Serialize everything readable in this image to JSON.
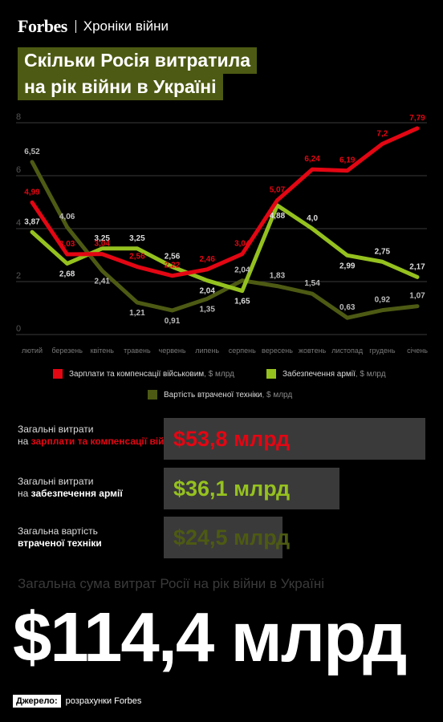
{
  "header": {
    "brand": "Forbes",
    "section": "Хроніки війни"
  },
  "title_lines": [
    "Скільки Росія витратила",
    "на рік війни в Україні"
  ],
  "colors": {
    "salary": "#e30613",
    "supply": "#95c11f",
    "equipment": "#4d5a13"
  },
  "chart_data": {
    "type": "line",
    "categories": [
      "лютий",
      "березень",
      "квітень",
      "травень",
      "червень",
      "липень",
      "серпень",
      "вересень",
      "жовтень",
      "листопад",
      "грудень",
      "січень"
    ],
    "y_ticks": [
      "8",
      "6",
      "4",
      "2",
      "0"
    ],
    "ylim": [
      0,
      8
    ],
    "grid": true,
    "series": [
      {
        "key": "salary",
        "name": "Зарплати та компенсації військовим",
        "unit": ", $ млрд",
        "color": "#e30613",
        "values": [
          4.99,
          3.03,
          3.04,
          2.56,
          2.22,
          2.46,
          3.04,
          5.07,
          6.24,
          6.19,
          7.2,
          7.79
        ],
        "labels": [
          "4,99",
          "3,03",
          "3,04",
          "2,56",
          "2,22",
          "2,46",
          "3,04",
          "5,07",
          "6,24",
          "6,19",
          "7,2",
          "7,79"
        ]
      },
      {
        "key": "supply",
        "name": "Забезпечення армії",
        "unit": ", $ млрд",
        "color": "#95c11f",
        "values": [
          3.87,
          2.68,
          3.25,
          3.25,
          2.56,
          2.04,
          1.65,
          4.88,
          4.0,
          2.99,
          2.75,
          2.17
        ],
        "labels": [
          "3,87",
          "2,68",
          "3,25",
          "3,25",
          "2,56",
          "2,04",
          "1,65",
          "4,88",
          "4,0",
          "2,99",
          "2,75",
          "2,17"
        ]
      },
      {
        "key": "equipment",
        "name": "Вартість втраченої техніки",
        "unit": ", $ млрд",
        "color": "#4d5a13",
        "values": [
          6.52,
          4.06,
          2.41,
          1.21,
          0.91,
          1.35,
          2.04,
          1.83,
          1.54,
          0.63,
          0.92,
          1.07
        ],
        "labels": [
          "6,52",
          "4,06",
          "2,41",
          "1,21",
          "0,91",
          "1,35",
          "2,04",
          "1,83",
          "1,54",
          "0,63",
          "0,92",
          "1,07"
        ]
      }
    ]
  },
  "totals": [
    {
      "key": "salary",
      "label_plain": "Загальні витрати",
      "label_mid": "на",
      "label_bold": "зарплати та компенсації військовим",
      "value": "$53,8 млрд",
      "amount": 53.8,
      "color": "#e30613"
    },
    {
      "key": "supply",
      "label_plain": "Загальні витрати",
      "label_mid": "на",
      "label_bold": "забезпечення армії",
      "value": "$36,1 млрд",
      "amount": 36.1,
      "color": "#95c11f"
    },
    {
      "key": "equipment",
      "label_plain": "Загальна вартість",
      "label_mid": "",
      "label_bold": "втраченої техніки",
      "value": "$24,5 млрд",
      "amount": 24.5,
      "color": "#4d5a13"
    }
  ],
  "summary": {
    "caption": "Загальна сума витрат Росії на рік війни в Україні",
    "value": "$114,4 млрд"
  },
  "source": {
    "tag": "Джерело:",
    "text": "розрахунки Forbes"
  }
}
